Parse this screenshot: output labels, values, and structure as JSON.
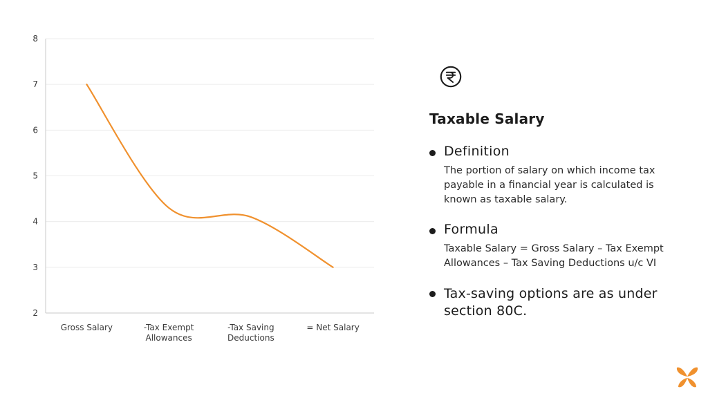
{
  "chart_data": {
    "type": "line",
    "categories": [
      "Gross Salary",
      "-Tax Exempt Allowances",
      "-Tax Saving Deductions",
      "= Net Salary"
    ],
    "category_lines": [
      [
        "Gross Salary"
      ],
      [
        "-Tax Exempt",
        "Allowances"
      ],
      [
        "-Tax Saving",
        "Deductions"
      ],
      [
        "= Net Salary"
      ]
    ],
    "values": [
      7.0,
      4.3,
      4.1,
      3.0
    ],
    "ylim": [
      2,
      8
    ],
    "yticks": [
      2,
      3,
      4,
      5,
      6,
      7,
      8
    ],
    "line_color": "#F0912E",
    "grid": true
  },
  "panel": {
    "title": "Taxable Salary",
    "icon": "rupee-icon",
    "definition_heading": "Definition",
    "definition_text": "The portion of salary on which income tax payable in a financial year is calculated is known as taxable salary.",
    "formula_heading": "Formula",
    "formula_text": "Taxable Salary = Gross Salary – Tax Exempt Allowances – Tax Saving Deductions u/c VI",
    "options_text": "Tax-saving options are as under section 80C."
  },
  "brand": {
    "logo": "butterfly-logo",
    "color": "#F0912E"
  }
}
